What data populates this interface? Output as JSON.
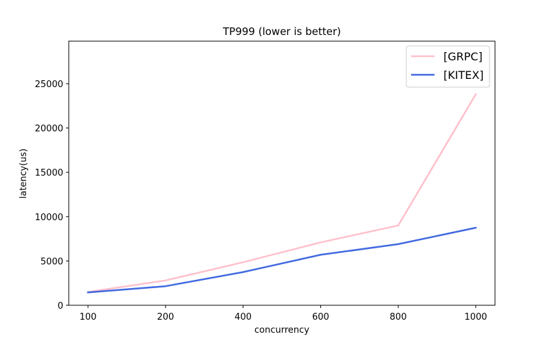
{
  "chart_data": {
    "type": "line",
    "title": "TP999 (lower is better)",
    "xlabel": "concurrency",
    "ylabel": "latency(us)",
    "categories": [
      "100",
      "200",
      "400",
      "600",
      "800",
      "1000"
    ],
    "ylim": [
      0,
      29800
    ],
    "yticks": [
      0,
      5000,
      10000,
      15000,
      20000,
      25000
    ],
    "grid": false,
    "legend_position": "top-right",
    "series": [
      {
        "name": "[GRPC]",
        "color": "#ffc0cb",
        "values": [
          1500,
          2800,
          4850,
          7100,
          9000,
          23800
        ]
      },
      {
        "name": "[KITEX]",
        "color": "#4169e1",
        "values": [
          1450,
          2150,
          3750,
          5700,
          6900,
          8750
        ]
      }
    ]
  }
}
